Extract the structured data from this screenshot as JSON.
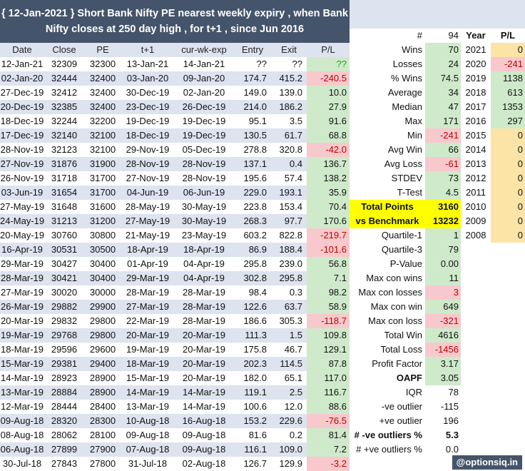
{
  "title_line1": "{ 12-Jan-2021 } Short Bank Nifty PE nearest weekly expiry , when Bank",
  "title_line2": "Nifty closes at 250 day high , for t+1 , since Jun 2016",
  "columns": [
    "Date",
    "Close",
    "PE",
    "t+1",
    "cur-wk-exp",
    "Entry",
    "Exit",
    "P/L"
  ],
  "rows": [
    [
      "12-Jan-21",
      "32309",
      "32300",
      "13-Jan-21",
      "14-Jan-21",
      "??",
      "??",
      "??"
    ],
    [
      "02-Jan-20",
      "32444",
      "32400",
      "03-Jan-20",
      "09-Jan-20",
      "174.7",
      "415.2",
      "-240.5"
    ],
    [
      "27-Dec-19",
      "32412",
      "32400",
      "30-Dec-19",
      "02-Jan-20",
      "149.0",
      "139.0",
      "10.0"
    ],
    [
      "20-Dec-19",
      "32385",
      "32400",
      "23-Dec-19",
      "26-Dec-19",
      "214.0",
      "186.2",
      "27.9"
    ],
    [
      "18-Dec-19",
      "32244",
      "32200",
      "19-Dec-19",
      "19-Dec-19",
      "95.1",
      "3.5",
      "91.6"
    ],
    [
      "17-Dec-19",
      "32140",
      "32100",
      "18-Dec-19",
      "19-Dec-19",
      "130.5",
      "61.7",
      "68.8"
    ],
    [
      "28-Nov-19",
      "32123",
      "32100",
      "29-Nov-19",
      "05-Dec-19",
      "278.8",
      "320.8",
      "-42.0"
    ],
    [
      "27-Nov-19",
      "31876",
      "31900",
      "28-Nov-19",
      "28-Nov-19",
      "137.1",
      "0.4",
      "136.7"
    ],
    [
      "26-Nov-19",
      "31718",
      "31700",
      "27-Nov-19",
      "28-Nov-19",
      "195.6",
      "57.4",
      "138.2"
    ],
    [
      "03-Jun-19",
      "31654",
      "31700",
      "04-Jun-19",
      "06-Jun-19",
      "229.0",
      "193.1",
      "35.9"
    ],
    [
      "27-May-19",
      "31648",
      "31600",
      "28-May-19",
      "30-May-19",
      "223.8",
      "153.4",
      "70.4"
    ],
    [
      "24-May-19",
      "31213",
      "31200",
      "27-May-19",
      "30-May-19",
      "268.3",
      "97.7",
      "170.6"
    ],
    [
      "20-May-19",
      "30760",
      "30800",
      "21-May-19",
      "23-May-19",
      "603.2",
      "822.8",
      "-219.7"
    ],
    [
      "16-Apr-19",
      "30531",
      "30500",
      "18-Apr-19",
      "18-Apr-19",
      "86.9",
      "188.4",
      "-101.6"
    ],
    [
      "29-Mar-19",
      "30427",
      "30400",
      "01-Apr-19",
      "04-Apr-19",
      "295.8",
      "239.0",
      "56.8"
    ],
    [
      "28-Mar-19",
      "30421",
      "30400",
      "29-Mar-19",
      "04-Apr-19",
      "302.8",
      "295.8",
      "7.1"
    ],
    [
      "27-Mar-19",
      "30020",
      "30000",
      "28-Mar-19",
      "28-Mar-19",
      "98.4",
      "0.3",
      "98.2"
    ],
    [
      "26-Mar-19",
      "29882",
      "29900",
      "27-Mar-19",
      "28-Mar-19",
      "122.6",
      "63.7",
      "58.9"
    ],
    [
      "20-Mar-19",
      "29832",
      "29800",
      "22-Mar-19",
      "28-Mar-19",
      "186.6",
      "305.3",
      "-118.7"
    ],
    [
      "19-Mar-19",
      "29768",
      "29800",
      "20-Mar-19",
      "20-Mar-19",
      "111.3",
      "1.5",
      "109.8"
    ],
    [
      "18-Mar-19",
      "29596",
      "29600",
      "19-Mar-19",
      "20-Mar-19",
      "175.8",
      "46.7",
      "129.1"
    ],
    [
      "15-Mar-19",
      "29381",
      "29400",
      "18-Mar-19",
      "20-Mar-19",
      "202.3",
      "114.5",
      "87.8"
    ],
    [
      "14-Mar-19",
      "28923",
      "28900",
      "15-Mar-19",
      "20-Mar-19",
      "182.0",
      "65.1",
      "117.0"
    ],
    [
      "13-Mar-19",
      "28884",
      "28900",
      "14-Mar-19",
      "14-Mar-19",
      "119.1",
      "2.5",
      "116.7"
    ],
    [
      "12-Mar-19",
      "28444",
      "28400",
      "13-Mar-19",
      "14-Mar-19",
      "100.6",
      "12.0",
      "88.6"
    ],
    [
      "09-Aug-18",
      "28320",
      "28300",
      "10-Aug-18",
      "16-Aug-18",
      "153.2",
      "229.6",
      "-76.5"
    ],
    [
      "08-Aug-18",
      "28062",
      "28100",
      "09-Aug-18",
      "09-Aug-18",
      "81.6",
      "0.2",
      "81.4"
    ],
    [
      "06-Aug-18",
      "27899",
      "27900",
      "07-Aug-18",
      "09-Aug-18",
      "116.1",
      "109.0",
      "7.2"
    ],
    [
      "30-Jul-18",
      "27843",
      "27800",
      "31-Jul-18",
      "02-Aug-18",
      "126.7",
      "129.9",
      "-3.2"
    ]
  ],
  "stats_header": {
    "label": "#",
    "value": "94",
    "year": "Year",
    "pl": "P/L"
  },
  "stats": [
    {
      "label": "Wins",
      "value": "70",
      "style": "pos"
    },
    {
      "label": "Losses",
      "value": "24",
      "style": "pos"
    },
    {
      "label": "% Wins",
      "value": "74.5",
      "style": "pos"
    },
    {
      "label": "Average",
      "value": "34",
      "style": "pos"
    },
    {
      "label": "Median",
      "value": "47",
      "style": "pos"
    },
    {
      "label": "Max",
      "value": "171",
      "style": "pos"
    },
    {
      "label": "Min",
      "value": "-241",
      "style": "neg"
    },
    {
      "label": "Avg Win",
      "value": "66",
      "style": "pos"
    },
    {
      "label": "Avg Loss",
      "value": "-61",
      "style": "neg"
    },
    {
      "label": "STDEV",
      "value": "73",
      "style": "pos"
    },
    {
      "label": "T-Test",
      "value": "4.5",
      "style": "pos"
    },
    {
      "label": "Total  Points",
      "value": "3160",
      "style": "yellow"
    },
    {
      "label": "vs  Benchmark",
      "value": "13232",
      "style": "yellow"
    },
    {
      "label": "Quartile-1",
      "value": "1",
      "style": "pos"
    },
    {
      "label": "Quartile-3",
      "value": "79",
      "style": "pos"
    },
    {
      "label": "P-Value",
      "value": "0.00",
      "style": "pos"
    },
    {
      "label": "Max con wins",
      "value": "11",
      "style": "pos"
    },
    {
      "label": "Max con losses",
      "value": "3",
      "style": "neg"
    },
    {
      "label": "Max con win",
      "value": "649",
      "style": "pos"
    },
    {
      "label": "Max con loss",
      "value": "-321",
      "style": "neg"
    },
    {
      "label": "Total Win",
      "value": "4616",
      "style": "pos"
    },
    {
      "label": "Total Loss",
      "value": "-1456",
      "style": "neg"
    },
    {
      "label": "Profit Factor",
      "value": "3.17",
      "style": "pos"
    },
    {
      "label": "OAPF",
      "value": "3.05",
      "style": "posbold"
    },
    {
      "label": "IQR",
      "value": "78",
      "style": "plain"
    },
    {
      "label": "-ve outlier",
      "value": "-115",
      "style": "plain"
    },
    {
      "label": "+ve outlier",
      "value": "196",
      "style": "plain"
    },
    {
      "label": "# -ve outliers %",
      "value": "5.3",
      "style": "plainbold"
    },
    {
      "label": "# +ve outliers %",
      "value": "0.0",
      "style": "plain"
    }
  ],
  "years": [
    {
      "year": "2021",
      "pl": "0"
    },
    {
      "year": "2020",
      "pl": "-241"
    },
    {
      "year": "2019",
      "pl": "1138"
    },
    {
      "year": "2018",
      "pl": "613"
    },
    {
      "year": "2017",
      "pl": "1353"
    },
    {
      "year": "2016",
      "pl": "297"
    },
    {
      "year": "2015",
      "pl": "0"
    },
    {
      "year": "2014",
      "pl": "0"
    },
    {
      "year": "2013",
      "pl": "0"
    },
    {
      "year": "2012",
      "pl": "0"
    },
    {
      "year": "2011",
      "pl": "0"
    },
    {
      "year": "2010",
      "pl": "0"
    },
    {
      "year": "2009",
      "pl": "0"
    },
    {
      "year": "2008",
      "pl": "0"
    }
  ],
  "watermark": "@optionsiq.in"
}
